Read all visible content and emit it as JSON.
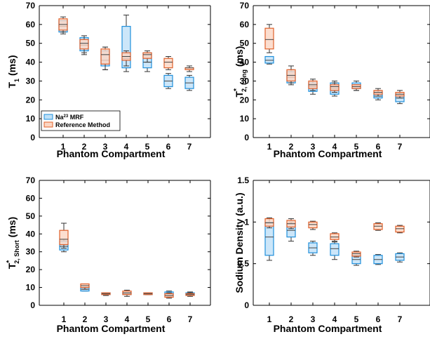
{
  "colors": {
    "mrf_face": "#bfe0f7",
    "mrf_edge": "#1f8fdb",
    "ref_face": "#fbd6c3",
    "ref_edge": "#e0602a",
    "median": "#444444",
    "axis": "#000000"
  },
  "legend": {
    "mrf_label_base": "Na",
    "mrf_label_sup": "23",
    "mrf_label_rest": " MRF",
    "ref_label": "Reference Method"
  },
  "chart_data": [
    {
      "type": "box",
      "ylabel": {
        "base": "T",
        "sub": "1",
        "rest": " (ms)"
      },
      "xlabel": "Phantom Compartment",
      "categories": [
        "1",
        "2",
        "3",
        "4",
        "5",
        "6",
        "7"
      ],
      "ylim": [
        0,
        70
      ],
      "yticks": [
        "0",
        "10",
        "20",
        "30",
        "40",
        "50",
        "60",
        "70"
      ],
      "ytick_values": [
        0,
        10,
        20,
        30,
        40,
        50,
        60,
        70
      ],
      "legend": "lower-left",
      "series": [
        {
          "name": "Na23 MRF",
          "role": "mrf",
          "boxes": [
            {
              "min": 55,
              "q1": 56,
              "median": 59,
              "q3": 62,
              "max": 62
            },
            {
              "min": 45,
              "q1": 46,
              "median": 49,
              "q3": 53,
              "max": 54
            },
            {
              "min": 36,
              "q1": 38,
              "median": 41,
              "q3": 46,
              "max": 48
            },
            {
              "min": 35,
              "q1": 37,
              "median": 42,
              "q3": 59,
              "max": 65
            },
            {
              "min": 35,
              "q1": 37,
              "median": 40,
              "q3": 45,
              "max": 46
            },
            {
              "min": 26,
              "q1": 27,
              "median": 30,
              "q3": 33,
              "max": 34
            },
            {
              "min": 25,
              "q1": 26,
              "median": 29,
              "q3": 32,
              "max": 33
            }
          ]
        },
        {
          "name": "Reference Method",
          "role": "ref",
          "boxes": [
            {
              "min": 56,
              "q1": 57,
              "median": 60,
              "q3": 63,
              "max": 64
            },
            {
              "min": 44,
              "q1": 47,
              "median": 50,
              "q3": 52,
              "max": 54
            },
            {
              "min": 36,
              "q1": 39,
              "median": 44,
              "q3": 47,
              "max": 48
            },
            {
              "min": 38,
              "q1": 41,
              "median": 43,
              "q3": 45,
              "max": 46
            },
            {
              "min": 40,
              "q1": 42,
              "median": 44,
              "q3": 45,
              "max": 45
            },
            {
              "min": 36,
              "q1": 37,
              "median": 40,
              "q3": 42,
              "max": 43
            },
            {
              "min": 35,
              "q1": 36,
              "median": 37,
              "q3": 37,
              "max": 38
            }
          ]
        }
      ]
    },
    {
      "type": "box",
      "ylabel": {
        "base": "T",
        "sup": "*",
        "sub": "2, Long",
        "rest": " (ms)"
      },
      "xlabel": "Phantom Compartment",
      "categories": [
        "1",
        "2",
        "3",
        "4",
        "5",
        "6",
        "7"
      ],
      "ylim": [
        0,
        70
      ],
      "yticks": [
        "0",
        "10",
        "20",
        "30",
        "40",
        "50",
        "60",
        "70"
      ],
      "ytick_values": [
        0,
        10,
        20,
        30,
        40,
        50,
        60,
        70
      ],
      "series": [
        {
          "name": "Na23 MRF",
          "role": "mrf",
          "boxes": [
            {
              "min": 39,
              "q1": 39.5,
              "median": 41,
              "q3": 43,
              "max": 43
            },
            {
              "min": 28,
              "q1": 29,
              "median": 32,
              "q3": 35,
              "max": 36
            },
            {
              "min": 23,
              "q1": 24.5,
              "median": 27,
              "q3": 29,
              "max": 30
            },
            {
              "min": 22,
              "q1": 23,
              "median": 26,
              "q3": 29,
              "max": 30
            },
            {
              "min": 25,
              "q1": 26,
              "median": 27,
              "q3": 29,
              "max": 30
            },
            {
              "min": 20,
              "q1": 21,
              "median": 22,
              "q3": 24,
              "max": 25
            },
            {
              "min": 18,
              "q1": 19,
              "median": 21,
              "q3": 23,
              "max": 24
            }
          ]
        },
        {
          "name": "Reference Method",
          "role": "ref",
          "boxes": [
            {
              "min": 45,
              "q1": 47,
              "median": 52,
              "q3": 58,
              "max": 60
            },
            {
              "min": 29,
              "q1": 30,
              "median": 33,
              "q3": 36,
              "max": 38
            },
            {
              "min": 25,
              "q1": 26,
              "median": 28,
              "q3": 30,
              "max": 31
            },
            {
              "min": 24,
              "q1": 25,
              "median": 27,
              "q3": 28,
              "max": 29
            },
            {
              "min": 25,
              "q1": 26,
              "median": 27,
              "q3": 28,
              "max": 28
            },
            {
              "min": 22,
              "q1": 23,
              "median": 24,
              "q3": 25,
              "max": 26
            },
            {
              "min": 21,
              "q1": 22,
              "median": 23,
              "q3": 24,
              "max": 25
            }
          ]
        }
      ]
    },
    {
      "type": "box",
      "ylabel": {
        "base": "T",
        "sup": "*",
        "sub": "2, Short",
        "rest": " (ms)"
      },
      "xlabel": "Phantom Compartment",
      "categories": [
        "1",
        "2",
        "3",
        "4",
        "5",
        "6",
        "7"
      ],
      "ylim": [
        0,
        70
      ],
      "yticks": [
        "0",
        "10",
        "20",
        "30",
        "40",
        "50",
        "60",
        "70"
      ],
      "ytick_values": [
        0,
        10,
        20,
        30,
        40,
        50,
        60,
        70
      ],
      "series": [
        {
          "name": "Na23 MRF",
          "role": "mrf",
          "boxes": [
            {
              "min": 30,
              "q1": 31,
              "median": 33,
              "q3": 36,
              "max": 37
            },
            {
              "min": 8,
              "q1": 8,
              "median": 9,
              "q3": 10,
              "max": 10
            },
            {
              "min": 6,
              "q1": 6,
              "median": 6.5,
              "q3": 7,
              "max": 7
            },
            {
              "min": 6,
              "q1": 6,
              "median": 6.5,
              "q3": 7,
              "max": 7
            },
            {
              "min": 6,
              "q1": 6,
              "median": 6.5,
              "q3": 7,
              "max": 7
            },
            {
              "min": 5,
              "q1": 5.5,
              "median": 6.5,
              "q3": 7.5,
              "max": 8
            },
            {
              "min": 5.5,
              "q1": 6,
              "median": 6.5,
              "q3": 7,
              "max": 7.5
            }
          ]
        },
        {
          "name": "Reference Method",
          "role": "ref",
          "boxes": [
            {
              "min": 32,
              "q1": 34,
              "median": 37,
              "q3": 42,
              "max": 46
            },
            {
              "min": 9,
              "q1": 10,
              "median": 11,
              "q3": 12,
              "max": 12
            },
            {
              "min": 5.5,
              "q1": 6,
              "median": 6.5,
              "q3": 7,
              "max": 7
            },
            {
              "min": 5,
              "q1": 6,
              "median": 7,
              "q3": 8,
              "max": 8.5
            },
            {
              "min": 6,
              "q1": 6,
              "median": 6.5,
              "q3": 7,
              "max": 7
            },
            {
              "min": 4,
              "q1": 4.5,
              "median": 5.5,
              "q3": 6.5,
              "max": 7
            },
            {
              "min": 5,
              "q1": 5.5,
              "median": 6,
              "q3": 6.5,
              "max": 7
            }
          ]
        }
      ]
    },
    {
      "type": "box",
      "ylabel": {
        "base": "Sodium Density (a.u.)"
      },
      "xlabel": "Phantom Compartment",
      "categories": [
        "1",
        "2",
        "3",
        "4",
        "5",
        "6",
        "7"
      ],
      "ylim": [
        0,
        1.5
      ],
      "yticks": [
        "0",
        "0.5",
        "1",
        "1.5"
      ],
      "ytick_values": [
        0,
        0.5,
        1,
        1.5
      ],
      "series": [
        {
          "name": "Na23 MRF",
          "role": "mrf",
          "boxes": [
            {
              "min": 0.54,
              "q1": 0.6,
              "median": 0.82,
              "q3": 1.0,
              "max": 1.04
            },
            {
              "min": 0.77,
              "q1": 0.82,
              "median": 0.9,
              "q3": 0.98,
              "max": 1.0
            },
            {
              "min": 0.6,
              "q1": 0.63,
              "median": 0.69,
              "q3": 0.75,
              "max": 0.77
            },
            {
              "min": 0.55,
              "q1": 0.6,
              "median": 0.68,
              "q3": 0.74,
              "max": 0.76
            },
            {
              "min": 0.48,
              "q1": 0.5,
              "median": 0.55,
              "q3": 0.6,
              "max": 0.6
            },
            {
              "min": 0.49,
              "q1": 0.5,
              "median": 0.55,
              "q3": 0.6,
              "max": 0.61
            },
            {
              "min": 0.52,
              "q1": 0.54,
              "median": 0.58,
              "q3": 0.62,
              "max": 0.63
            }
          ]
        },
        {
          "name": "Reference Method",
          "role": "ref",
          "boxes": [
            {
              "min": 0.93,
              "q1": 0.95,
              "median": 0.99,
              "q3": 1.04,
              "max": 1.05
            },
            {
              "min": 0.92,
              "q1": 0.94,
              "median": 0.98,
              "q3": 1.02,
              "max": 1.04
            },
            {
              "min": 0.91,
              "q1": 0.93,
              "median": 0.97,
              "q3": 1.0,
              "max": 1.01
            },
            {
              "min": 0.77,
              "q1": 0.79,
              "median": 0.82,
              "q3": 0.86,
              "max": 0.87
            },
            {
              "min": 0.58,
              "q1": 0.59,
              "median": 0.62,
              "q3": 0.64,
              "max": 0.65
            },
            {
              "min": 0.9,
              "q1": 0.91,
              "median": 0.95,
              "q3": 0.98,
              "max": 0.99
            },
            {
              "min": 0.87,
              "q1": 0.88,
              "median": 0.92,
              "q3": 0.95,
              "max": 0.96
            }
          ]
        }
      ]
    }
  ]
}
